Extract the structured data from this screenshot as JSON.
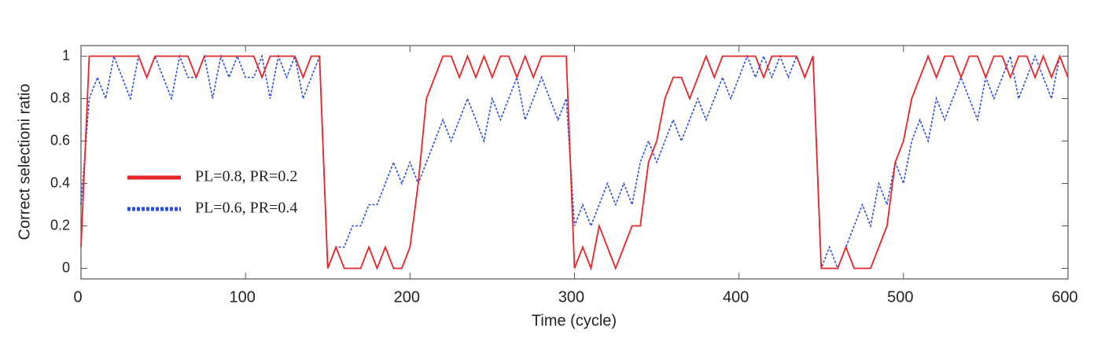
{
  "chart_data": {
    "type": "line",
    "xlabel": "Time (cycle)",
    "ylabel": "Correct selectioni ratio",
    "xlim": [
      0,
      600
    ],
    "xticks": [
      0,
      100,
      200,
      300,
      400,
      500,
      600
    ],
    "ylim": [
      -0.05,
      1.05
    ],
    "yticks": [
      0,
      0.2,
      0.4,
      0.6,
      0.8,
      1
    ],
    "grid": false,
    "legend": "left",
    "x": [
      0,
      5,
      10,
      15,
      20,
      25,
      30,
      35,
      40,
      45,
      50,
      55,
      60,
      65,
      70,
      75,
      80,
      85,
      90,
      95,
      100,
      105,
      110,
      115,
      120,
      125,
      130,
      135,
      140,
      145,
      150,
      155,
      160,
      165,
      170,
      175,
      180,
      185,
      190,
      195,
      200,
      205,
      210,
      215,
      220,
      225,
      230,
      235,
      240,
      245,
      250,
      255,
      260,
      265,
      270,
      275,
      280,
      285,
      290,
      295,
      300,
      305,
      310,
      315,
      320,
      325,
      330,
      335,
      340,
      345,
      350,
      355,
      360,
      365,
      370,
      375,
      380,
      385,
      390,
      395,
      400,
      405,
      410,
      415,
      420,
      425,
      430,
      435,
      440,
      445,
      450,
      455,
      460,
      465,
      470,
      475,
      480,
      485,
      490,
      495,
      500,
      505,
      510,
      515,
      520,
      525,
      530,
      535,
      540,
      545,
      550,
      555,
      560,
      565,
      570,
      575,
      580,
      585,
      590,
      595,
      600
    ],
    "series": [
      {
        "name": "PL=0.8, PR=0.2",
        "color": "#e8262a",
        "style": "solid",
        "values": [
          0.1,
          1,
          1,
          1,
          1,
          1,
          1,
          1,
          0.9,
          1,
          1,
          1,
          1,
          1,
          0.9,
          1,
          1,
          1,
          1,
          1,
          1,
          1,
          0.9,
          1,
          1,
          1,
          1,
          0.9,
          1,
          1,
          0,
          0.1,
          0,
          0,
          0,
          0.1,
          0,
          0.1,
          0,
          0,
          0.1,
          0.4,
          0.8,
          0.9,
          1,
          1,
          0.9,
          1,
          0.9,
          1,
          0.9,
          1,
          1,
          0.9,
          1,
          0.9,
          1,
          1,
          1,
          1,
          0,
          0.1,
          0,
          0.2,
          0.1,
          0,
          0.1,
          0.2,
          0.2,
          0.5,
          0.6,
          0.8,
          0.9,
          0.9,
          0.8,
          0.9,
          1,
          0.9,
          1,
          1,
          1,
          1,
          1,
          0.9,
          1,
          1,
          1,
          1,
          0.9,
          1,
          0,
          0,
          0,
          0.1,
          0,
          0,
          0,
          0.1,
          0.2,
          0.5,
          0.6,
          0.8,
          0.9,
          1,
          0.9,
          1,
          1,
          0.9,
          1,
          1,
          0.9,
          1,
          1,
          0.9,
          1,
          1,
          0.9,
          1,
          0.9,
          1,
          0.9
        ]
      },
      {
        "name": "PL=0.6, PR=0.4",
        "color": "#2a4ee0",
        "style": "dotted",
        "values": [
          0.3,
          0.8,
          0.9,
          0.8,
          1,
          0.9,
          0.8,
          1,
          0.9,
          1,
          0.9,
          0.8,
          1,
          0.9,
          0.9,
          1,
          0.8,
          1,
          0.9,
          1,
          0.9,
          0.9,
          1,
          0.8,
          1,
          0.9,
          1,
          0.8,
          0.9,
          1,
          0,
          0.1,
          0.1,
          0.2,
          0.2,
          0.3,
          0.3,
          0.4,
          0.5,
          0.4,
          0.5,
          0.4,
          0.5,
          0.6,
          0.7,
          0.6,
          0.7,
          0.8,
          0.7,
          0.6,
          0.8,
          0.7,
          0.8,
          0.9,
          0.7,
          0.8,
          0.9,
          0.8,
          0.7,
          0.8,
          0.2,
          0.3,
          0.2,
          0.3,
          0.4,
          0.3,
          0.4,
          0.3,
          0.5,
          0.6,
          0.5,
          0.6,
          0.7,
          0.6,
          0.7,
          0.8,
          0.7,
          0.8,
          0.9,
          0.8,
          0.9,
          1,
          0.9,
          1,
          0.9,
          1,
          0.9,
          1,
          0.9,
          1,
          0,
          0.1,
          0,
          0.1,
          0.2,
          0.3,
          0.2,
          0.4,
          0.3,
          0.5,
          0.4,
          0.6,
          0.7,
          0.6,
          0.8,
          0.7,
          0.8,
          0.9,
          0.8,
          0.7,
          0.9,
          0.8,
          0.9,
          1,
          0.8,
          0.9,
          1,
          0.9,
          0.8,
          1,
          0.9
        ]
      }
    ]
  }
}
